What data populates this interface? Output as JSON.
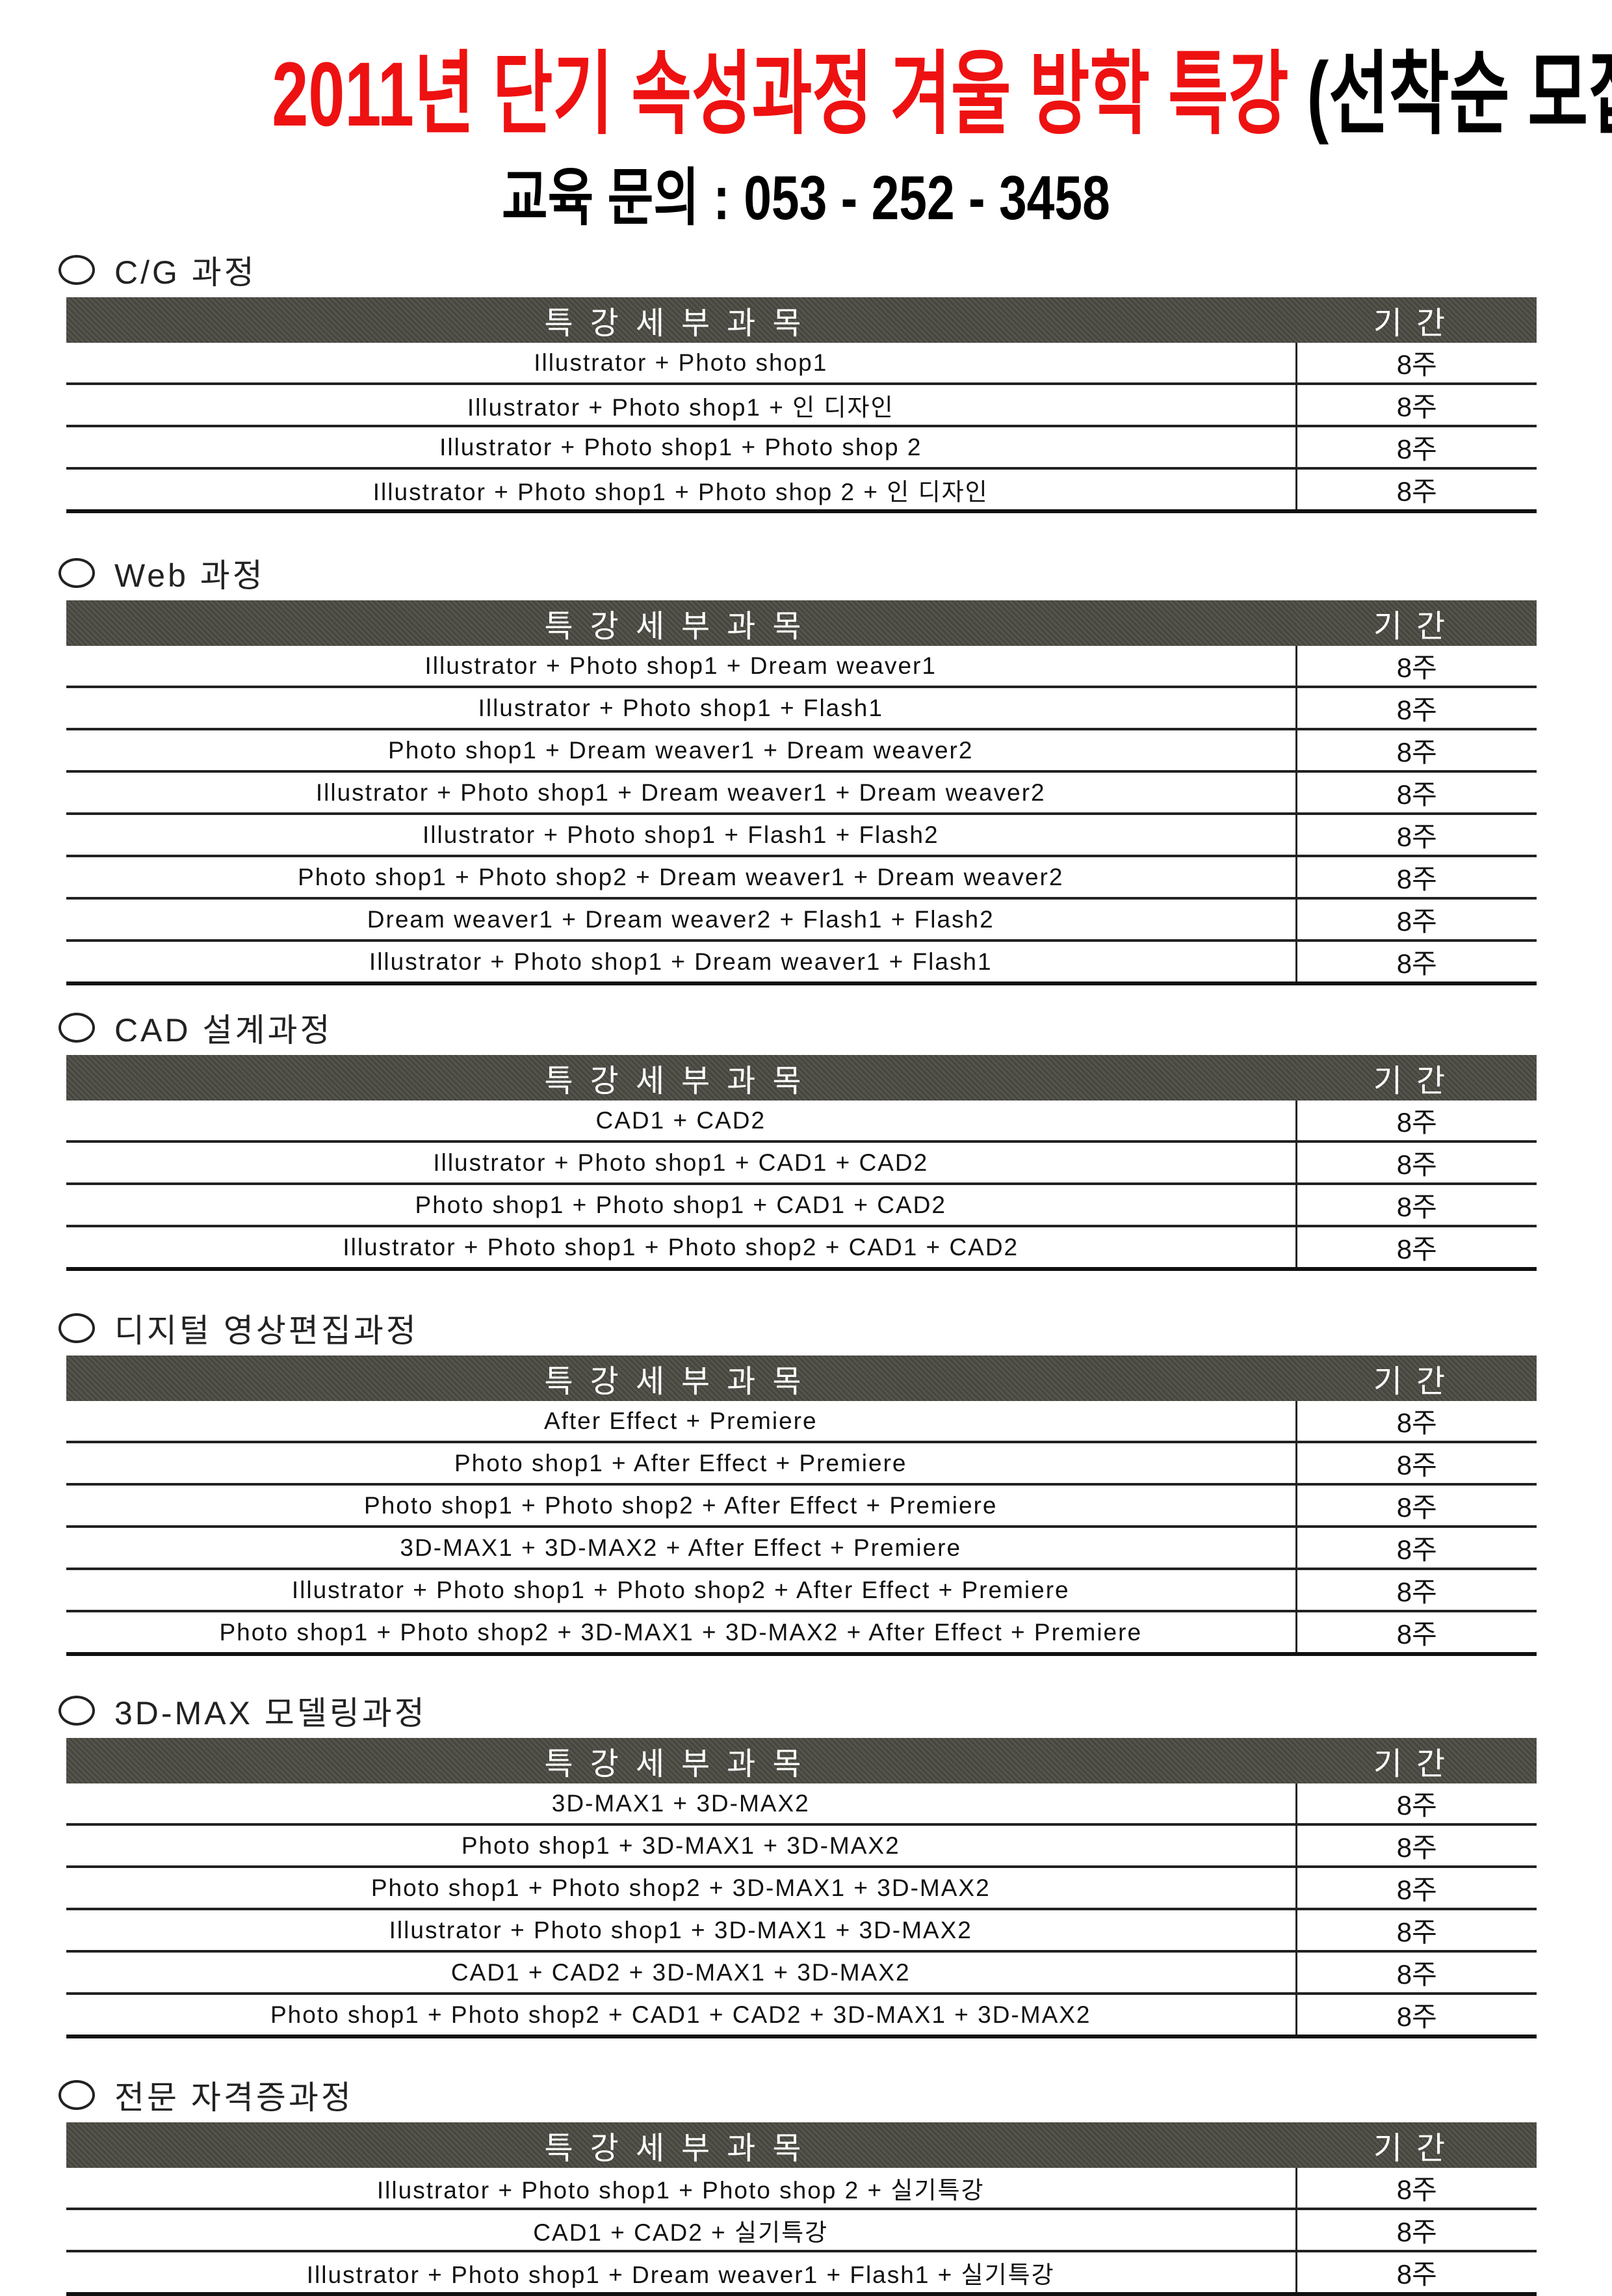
{
  "header": {
    "title_red": "2011년 단기 속성과정 겨울 방학 특강",
    "title_black": "(선착순 모집)",
    "phone": "교육 문의 : 053 - 252 - 3458"
  },
  "colors": {
    "title_red": "#ee1111",
    "table_header_bg": "#4a4a42"
  },
  "table_headers": {
    "course": "특강세부과목",
    "duration": "기간"
  },
  "sections": [
    {
      "title": "C/G 과정",
      "rows": [
        {
          "course": "Illustrator + Photo shop1",
          "duration": "8주"
        },
        {
          "course": "Illustrator + Photo shop1 + 인 디자인",
          "duration": "8주"
        },
        {
          "course": "Illustrator + Photo shop1 + Photo shop 2",
          "duration": "8주"
        },
        {
          "course": "Illustrator + Photo shop1 + Photo shop 2 + 인 디자인",
          "duration": "8주"
        }
      ]
    },
    {
      "title": "Web 과정",
      "rows": [
        {
          "course": "Illustrator + Photo shop1 + Dream weaver1",
          "duration": "8주"
        },
        {
          "course": "Illustrator + Photo shop1 + Flash1",
          "duration": "8주"
        },
        {
          "course": "Photo shop1 + Dream weaver1 + Dream weaver2",
          "duration": "8주"
        },
        {
          "course": "Illustrator + Photo shop1 + Dream weaver1 + Dream weaver2",
          "duration": "8주"
        },
        {
          "course": "Illustrator + Photo shop1 + Flash1 + Flash2",
          "duration": "8주"
        },
        {
          "course": "Photo shop1 + Photo shop2 + Dream weaver1 + Dream weaver2",
          "duration": "8주"
        },
        {
          "course": "Dream weaver1 + Dream weaver2 + Flash1 + Flash2",
          "duration": "8주"
        },
        {
          "course": "Illustrator + Photo shop1 + Dream weaver1 + Flash1",
          "duration": "8주"
        }
      ]
    },
    {
      "title": "CAD 설계과정",
      "rows": [
        {
          "course": "CAD1 + CAD2",
          "duration": "8주"
        },
        {
          "course": "Illustrator + Photo shop1 + CAD1 + CAD2",
          "duration": "8주"
        },
        {
          "course": "Photo shop1 + Photo shop1 + CAD1 + CAD2",
          "duration": "8주"
        },
        {
          "course": "Illustrator + Photo shop1 + Photo shop2 + CAD1 + CAD2",
          "duration": "8주"
        }
      ]
    },
    {
      "title": "디지털 영상편집과정",
      "rows": [
        {
          "course": "After Effect + Premiere",
          "duration": "8주"
        },
        {
          "course": "Photo shop1 + After Effect + Premiere",
          "duration": "8주"
        },
        {
          "course": "Photo shop1 + Photo shop2 + After Effect + Premiere",
          "duration": "8주"
        },
        {
          "course": "3D-MAX1 + 3D-MAX2 + After Effect + Premiere",
          "duration": "8주"
        },
        {
          "course": "Illustrator + Photo shop1 + Photo shop2 + After Effect + Premiere",
          "duration": "8주"
        },
        {
          "course": "Photo shop1 + Photo shop2 + 3D-MAX1 + 3D-MAX2 + After Effect + Premiere",
          "duration": "8주"
        }
      ]
    },
    {
      "title": "3D-MAX 모델링과정",
      "rows": [
        {
          "course": "3D-MAX1 + 3D-MAX2",
          "duration": "8주"
        },
        {
          "course": "Photo shop1 + 3D-MAX1 + 3D-MAX2",
          "duration": "8주"
        },
        {
          "course": "Photo shop1 + Photo shop2 + 3D-MAX1 + 3D-MAX2",
          "duration": "8주"
        },
        {
          "course": "Illustrator + Photo shop1 + 3D-MAX1 + 3D-MAX2",
          "duration": "8주"
        },
        {
          "course": "CAD1 + CAD2 + 3D-MAX1 + 3D-MAX2",
          "duration": "8주"
        },
        {
          "course": "Photo shop1 + Photo shop2 + CAD1 + CAD2 + 3D-MAX1 + 3D-MAX2",
          "duration": "8주"
        }
      ]
    },
    {
      "title": "전문 자격증과정",
      "rows": [
        {
          "course": "Illustrator + Photo shop1 + Photo shop 2 + 실기특강",
          "duration": "8주"
        },
        {
          "course": "CAD1 + CAD2 + 실기특강",
          "duration": "8주"
        },
        {
          "course": "Illustrator + Photo shop1 + Dream weaver1 + Flash1 + 실기특강",
          "duration": "8주"
        }
      ]
    }
  ]
}
